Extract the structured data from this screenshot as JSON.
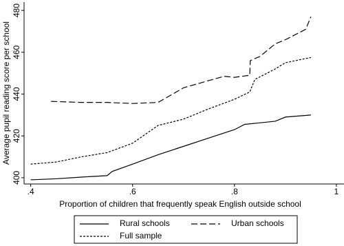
{
  "chart_data": {
    "type": "line",
    "x_label": "Proportion of children that frequently speak English outside school",
    "y_label": "Average pupil reading score per school",
    "xlim": [
      0.387,
      1.015
    ],
    "ylim": [
      397,
      484
    ],
    "xticks": [
      {
        "value": 0.4,
        "label": ".4"
      },
      {
        "value": 0.6,
        "label": ".6"
      },
      {
        "value": 0.8,
        "label": ".8"
      },
      1
    ],
    "yticks": [
      400,
      420,
      440,
      460,
      480
    ],
    "series": [
      {
        "name": "Rural schools",
        "color": "#000000",
        "dash": "solid",
        "x": [
          0.4,
          0.45,
          0.5,
          0.55,
          0.56,
          0.6,
          0.65,
          0.7,
          0.75,
          0.8,
          0.82,
          0.88,
          0.9,
          0.95
        ],
        "values": [
          399,
          399.5,
          400.3,
          401,
          403,
          406.5,
          411,
          415,
          419,
          423,
          425.5,
          427,
          429,
          430
        ]
      },
      {
        "name": "Urban schools",
        "color": "#000000",
        "dash": "long",
        "x": [
          0.44,
          0.5,
          0.55,
          0.6,
          0.65,
          0.7,
          0.75,
          0.78,
          0.8,
          0.83,
          0.831,
          0.85,
          0.88,
          0.9,
          0.94,
          0.95
        ],
        "values": [
          436.5,
          436,
          436,
          435.5,
          436,
          443,
          446.5,
          448.5,
          448,
          449,
          456,
          458,
          464,
          466,
          471,
          477
        ]
      },
      {
        "name": "Full sample",
        "color": "#000000",
        "dash": "short",
        "x": [
          0.4,
          0.45,
          0.5,
          0.55,
          0.6,
          0.65,
          0.7,
          0.75,
          0.8,
          0.83,
          0.84,
          0.88,
          0.9,
          0.95
        ],
        "values": [
          406.5,
          407.5,
          410,
          412,
          416.5,
          425,
          428,
          433,
          437.5,
          441,
          447,
          452,
          455,
          457.5
        ]
      }
    ]
  }
}
